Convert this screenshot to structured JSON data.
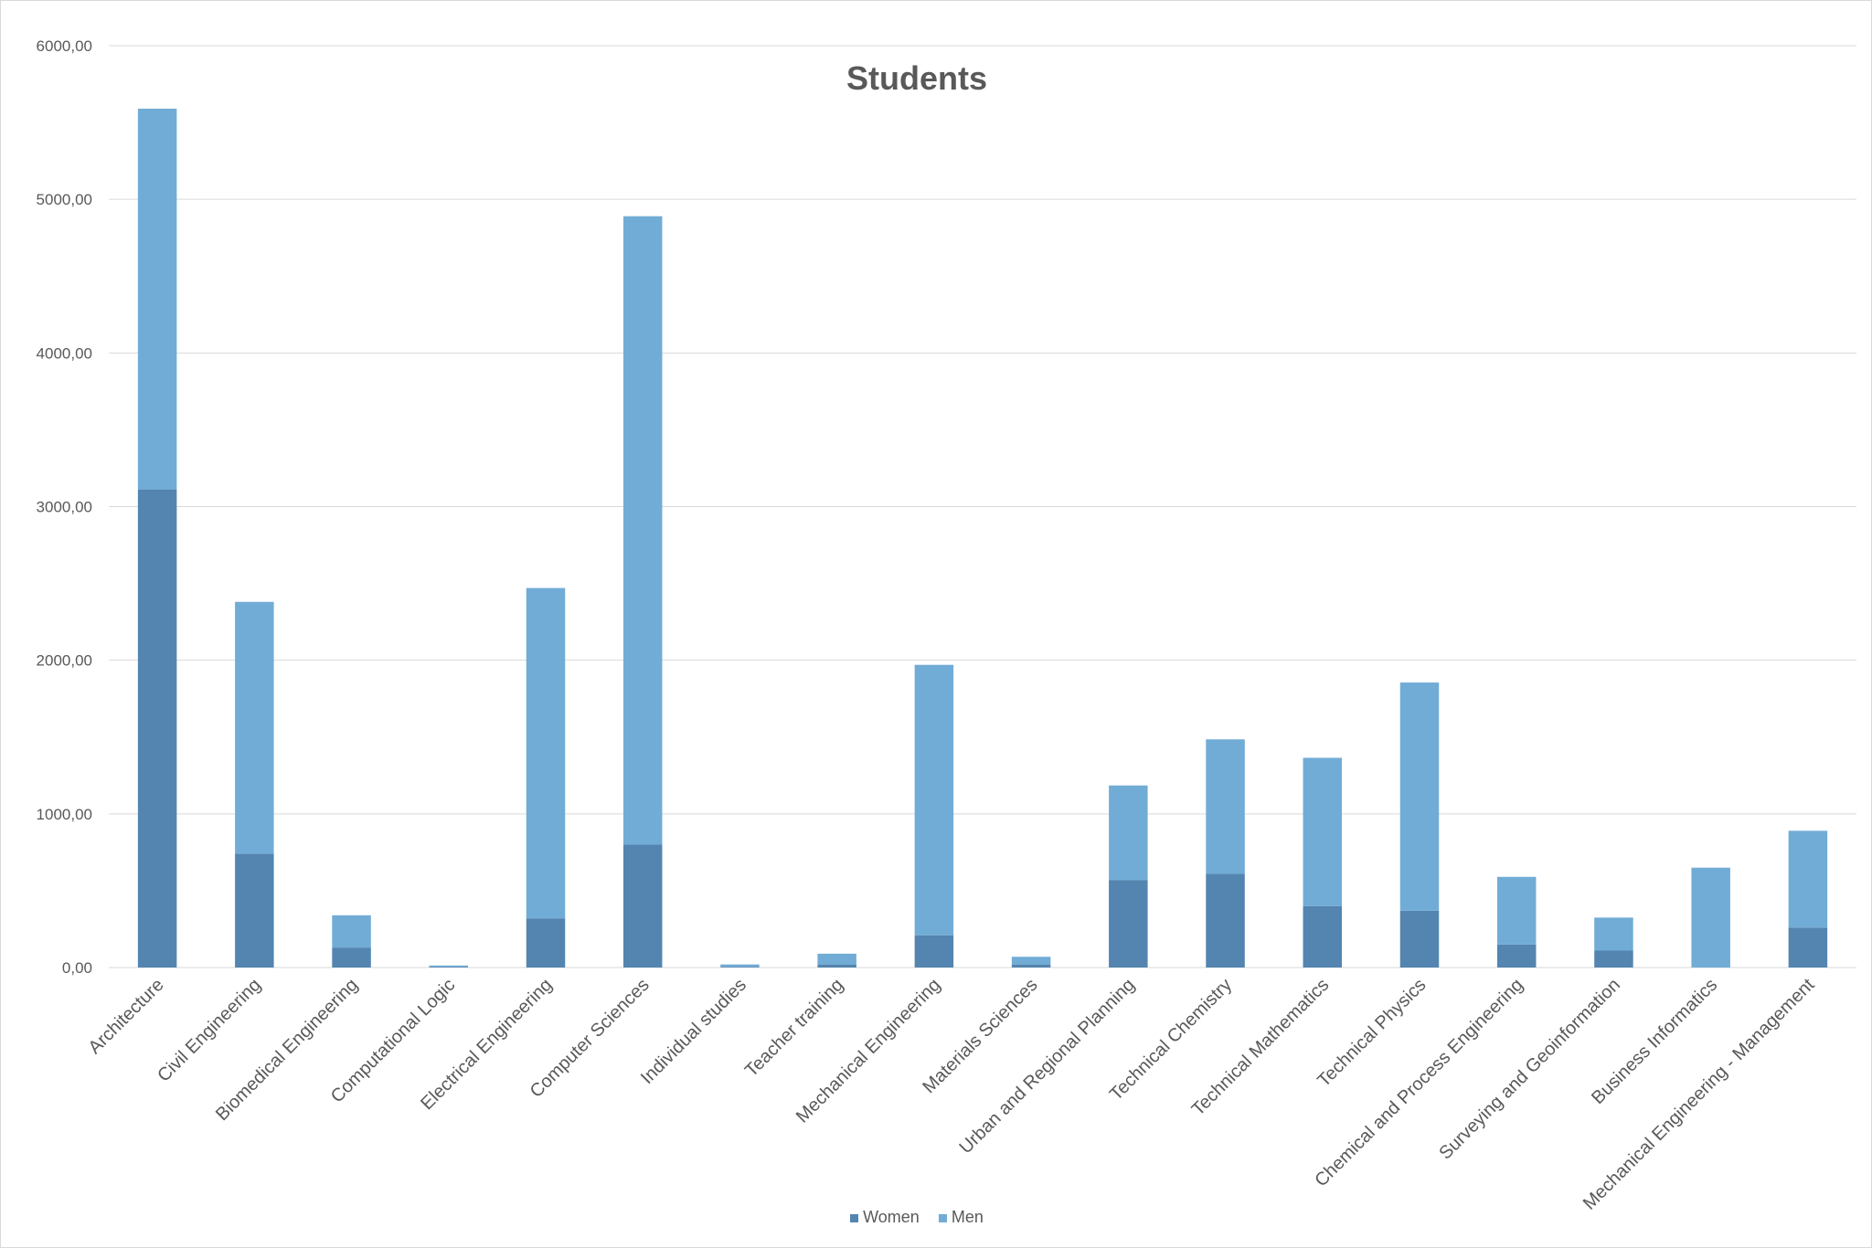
{
  "chart_data": {
    "type": "bar",
    "stacked": true,
    "title": "Students",
    "categories": [
      "Architecture",
      "Civil Engineering",
      "Biomedical Engineering",
      "Computational Logic",
      "Electrical Engineering",
      "Computer Sciences",
      "Individual studies",
      "Teacher training",
      "Mechanical Engineering",
      "Materials Sciences",
      "Urban and Regional Planning",
      "Technical Chemistry",
      "Technical Mathematics",
      "Technical Physics",
      "Chemical and Process Engineering",
      "Surveying and Geoinformation",
      "Business Informatics",
      "Mechanical Engineering - Management"
    ],
    "series": [
      {
        "name": "Women",
        "color": "#5385b0",
        "values": [
          3110,
          740,
          130,
          5,
          320,
          800,
          5,
          20,
          210,
          20,
          570,
          610,
          400,
          370,
          150,
          110,
          0,
          260
        ]
      },
      {
        "name": "Men",
        "color": "#71acd6",
        "values": [
          2480,
          1640,
          210,
          8,
          2150,
          4090,
          15,
          70,
          1760,
          50,
          615,
          875,
          965,
          1485,
          440,
          215,
          650,
          630
        ]
      }
    ],
    "ylim": [
      0,
      6000
    ],
    "yticks": [
      "0,00",
      "1000,00",
      "2000,00",
      "3000,00",
      "4000,00",
      "5000,00",
      "6000,00"
    ],
    "grid": true,
    "legend_position": "bottom"
  }
}
